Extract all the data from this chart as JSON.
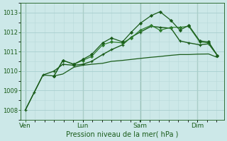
{
  "background_color": "#cce8e8",
  "plot_bg_color": "#cce8e8",
  "grid_color": "#b8d8d8",
  "grid_color_major": "#a0c8c8",
  "line_color_dark": "#1a5c1a",
  "line_color_mid": "#2e7d2e",
  "xlabel": "Pression niveau de la mer( hPa )",
  "ylim": [
    1007.5,
    1013.5
  ],
  "yticks": [
    1008,
    1009,
    1010,
    1011,
    1012,
    1013
  ],
  "xtick_labels": [
    "Ven",
    "Lun",
    "Sam",
    "Dim"
  ],
  "xtick_positions": [
    0,
    26,
    52,
    78
  ],
  "xlim": [
    -2,
    90
  ],
  "vline_positions": [
    0,
    26,
    52,
    78
  ],
  "series1_x": [
    0,
    4,
    8,
    13,
    17,
    22,
    26,
    30,
    35,
    39,
    44,
    48,
    52,
    56,
    61,
    65,
    70,
    74,
    78,
    83,
    87
  ],
  "series1_y": [
    1008.0,
    1008.9,
    1009.8,
    1009.75,
    1009.85,
    1010.2,
    1010.3,
    1010.35,
    1010.4,
    1010.5,
    1010.55,
    1010.6,
    1010.65,
    1010.7,
    1010.75,
    1010.8,
    1010.85,
    1010.85,
    1010.87,
    1010.88,
    1010.7
  ],
  "series2_x": [
    0,
    4,
    8,
    13,
    17,
    22,
    26,
    30,
    35,
    39,
    44,
    48,
    52,
    57,
    61,
    66,
    70,
    74,
    79,
    83,
    87
  ],
  "series2_y": [
    1008.0,
    1008.9,
    1009.8,
    1010.0,
    1010.35,
    1010.3,
    1010.35,
    1010.5,
    1010.85,
    1011.1,
    1011.35,
    1011.75,
    1012.0,
    1012.3,
    1012.25,
    1012.2,
    1011.55,
    1011.45,
    1011.35,
    1011.4,
    1010.8
  ],
  "series3_x": [
    13,
    17,
    22,
    26,
    30,
    35,
    39,
    44,
    48,
    52,
    57,
    61,
    66,
    70,
    74,
    79,
    83,
    87
  ],
  "series3_y": [
    1009.75,
    1010.55,
    1010.35,
    1010.55,
    1010.75,
    1011.35,
    1011.5,
    1011.45,
    1011.7,
    1012.1,
    1012.35,
    1012.1,
    1012.25,
    1012.25,
    1012.3,
    1011.5,
    1011.45,
    1010.8
  ],
  "series4_x": [
    13,
    17,
    22,
    26,
    30,
    35,
    39,
    44,
    48,
    52,
    57,
    61,
    66,
    70,
    74,
    79,
    83,
    87
  ],
  "series4_y": [
    1009.75,
    1010.55,
    1010.35,
    1010.6,
    1010.85,
    1011.45,
    1011.7,
    1011.5,
    1012.0,
    1012.45,
    1012.85,
    1013.05,
    1012.6,
    1012.1,
    1012.35,
    1011.55,
    1011.5,
    1010.8
  ]
}
